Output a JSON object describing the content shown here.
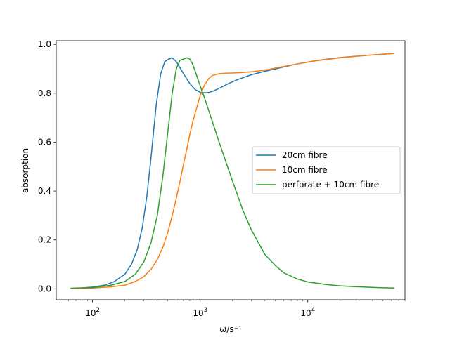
{
  "chart_data": {
    "type": "line",
    "title": "",
    "xlabel": "ω/s⁻¹",
    "ylabel": "absorption",
    "xscale": "log",
    "xlim": [
      46,
      80000
    ],
    "ylim": [
      -0.045,
      1.015
    ],
    "grid": false,
    "legend_position": "center-right",
    "x_ticks": [
      {
        "value": 100,
        "base": "10",
        "exp": "2"
      },
      {
        "value": 1000,
        "base": "10",
        "exp": "3"
      },
      {
        "value": 10000,
        "base": "10",
        "exp": "4"
      }
    ],
    "y_ticks": [
      {
        "value": 0.0,
        "label": "0.0"
      },
      {
        "value": 0.2,
        "label": "0.2"
      },
      {
        "value": 0.4,
        "label": "0.4"
      },
      {
        "value": 0.6,
        "label": "0.6"
      },
      {
        "value": 0.8,
        "label": "0.8"
      },
      {
        "value": 1.0,
        "label": "1.0"
      }
    ],
    "series": [
      {
        "name": "20cm fibre",
        "color": "#1f77b4",
        "x": [
          63,
          80,
          100,
          130,
          160,
          200,
          230,
          260,
          290,
          320,
          350,
          390,
          430,
          470,
          510,
          550,
          600,
          700,
          800,
          900,
          1000,
          1100,
          1200,
          1300,
          1500,
          1800,
          2200,
          3000,
          4000,
          6000,
          8000,
          12000,
          20000,
          35000,
          63000
        ],
        "y": [
          0.002,
          0.004,
          0.007,
          0.015,
          0.03,
          0.06,
          0.1,
          0.16,
          0.25,
          0.38,
          0.54,
          0.75,
          0.88,
          0.93,
          0.94,
          0.945,
          0.93,
          0.88,
          0.84,
          0.815,
          0.804,
          0.802,
          0.803,
          0.808,
          0.82,
          0.838,
          0.855,
          0.876,
          0.89,
          0.908,
          0.92,
          0.934,
          0.946,
          0.955,
          0.963
        ]
      },
      {
        "name": "10cm fibre",
        "color": "#ff7f0e",
        "x": [
          63,
          100,
          150,
          200,
          250,
          300,
          350,
          400,
          450,
          500,
          550,
          600,
          650,
          700,
          750,
          800,
          850,
          900,
          1000,
          1100,
          1200,
          1300,
          1500,
          1700,
          2000,
          2500,
          3000,
          4000,
          6000,
          8000,
          12000,
          20000,
          35000,
          63000
        ],
        "y": [
          0.001,
          0.003,
          0.008,
          0.015,
          0.03,
          0.05,
          0.08,
          0.12,
          0.17,
          0.23,
          0.3,
          0.37,
          0.44,
          0.51,
          0.57,
          0.63,
          0.68,
          0.72,
          0.79,
          0.835,
          0.86,
          0.873,
          0.88,
          0.882,
          0.883,
          0.885,
          0.888,
          0.895,
          0.91,
          0.92,
          0.933,
          0.945,
          0.955,
          0.963
        ]
      },
      {
        "name": "perforate + 10cm fibre",
        "color": "#2ca02c",
        "x": [
          63,
          100,
          150,
          200,
          250,
          300,
          350,
          400,
          450,
          500,
          550,
          600,
          650,
          700,
          750,
          800,
          850,
          900,
          1000,
          1100,
          1200,
          1500,
          2000,
          2500,
          3000,
          4000,
          5000,
          6000,
          8000,
          10000,
          15000,
          20000,
          30000,
          45000,
          63000
        ],
        "y": [
          0.002,
          0.005,
          0.015,
          0.03,
          0.06,
          0.11,
          0.19,
          0.3,
          0.46,
          0.64,
          0.8,
          0.9,
          0.935,
          0.94,
          0.945,
          0.94,
          0.92,
          0.89,
          0.83,
          0.78,
          0.73,
          0.6,
          0.44,
          0.32,
          0.24,
          0.14,
          0.095,
          0.065,
          0.04,
          0.028,
          0.017,
          0.012,
          0.008,
          0.005,
          0.003
        ]
      }
    ]
  }
}
